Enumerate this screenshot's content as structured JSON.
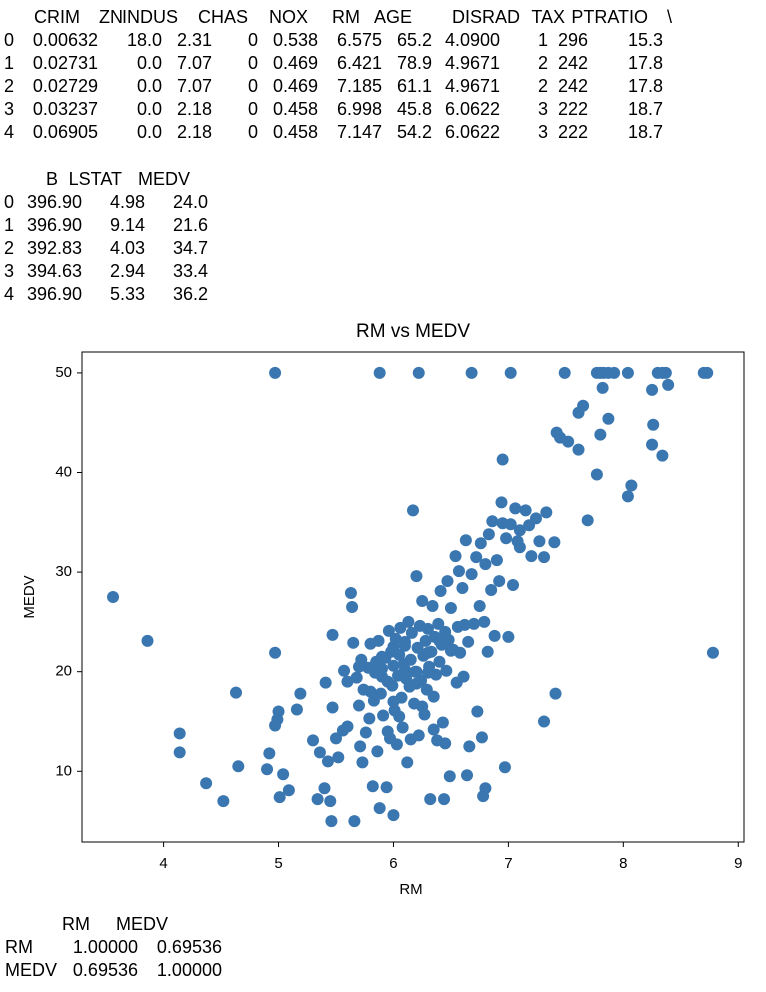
{
  "table_1": {
    "columns": [
      "CRIM",
      "ZN",
      "INDUS",
      "CHAS",
      "NOX",
      "RM",
      "AGE",
      "DIS",
      "RAD",
      "TAX",
      "PTRATIO",
      "\\"
    ],
    "index": [
      "0",
      "1",
      "2",
      "3",
      "4"
    ],
    "rows": [
      [
        "0.00632",
        "18.0",
        "2.31",
        "0",
        "0.538",
        "6.575",
        "65.2",
        "4.0900",
        "1",
        "296",
        "15.3"
      ],
      [
        "0.02731",
        "0.0",
        "7.07",
        "0",
        "0.469",
        "6.421",
        "78.9",
        "4.9671",
        "2",
        "242",
        "17.8"
      ],
      [
        "0.02729",
        "0.0",
        "7.07",
        "0",
        "0.469",
        "7.185",
        "61.1",
        "4.9671",
        "2",
        "242",
        "17.8"
      ],
      [
        "0.03237",
        "0.0",
        "2.18",
        "0",
        "0.458",
        "6.998",
        "45.8",
        "6.0622",
        "3",
        "222",
        "18.7"
      ],
      [
        "0.06905",
        "0.0",
        "2.18",
        "0",
        "0.458",
        "7.147",
        "54.2",
        "6.0622",
        "3",
        "222",
        "18.7"
      ]
    ]
  },
  "table_2": {
    "columns": [
      "B",
      "LSTAT",
      "MEDV"
    ],
    "index": [
      "0",
      "1",
      "2",
      "3",
      "4"
    ],
    "rows": [
      [
        "396.90",
        "4.98",
        "24.0"
      ],
      [
        "396.90",
        "9.14",
        "21.6"
      ],
      [
        "392.83",
        "4.03",
        "34.7"
      ],
      [
        "394.63",
        "2.94",
        "33.4"
      ],
      [
        "396.90",
        "5.33",
        "36.2"
      ]
    ]
  },
  "chart_data": {
    "type": "scatter",
    "title": "RM vs MEDV",
    "xlabel": "RM",
    "ylabel": "MEDV",
    "color": "#3a76b0",
    "xlim": [
      3.29,
      9.05
    ],
    "ylim": [
      2.9,
      52.1
    ],
    "xticks": [
      4,
      5,
      6,
      7,
      8,
      9
    ],
    "yticks": [
      10,
      20,
      30,
      40,
      50
    ],
    "x": [
      3.56,
      3.86,
      4.14,
      4.14,
      4.37,
      4.52,
      4.63,
      4.65,
      4.97,
      5.88,
      6.22,
      6.68,
      7.02,
      7.49,
      7.77,
      7.8,
      7.83,
      7.87,
      7.92,
      8.04,
      8.3,
      8.34,
      8.37,
      8.7,
      8.73,
      7.82,
      8.39,
      8.25,
      8.26,
      8.25,
      8.34,
      8.07,
      8.04,
      7.87,
      7.8,
      7.77,
      7.69,
      7.61,
      7.65,
      7.42,
      7.45,
      7.52,
      7.61,
      8.78,
      7.41,
      7.31,
      6.97,
      6.78,
      6.8,
      4.97,
      4.9,
      4.92,
      5.0,
      4.97,
      4.99,
      5.01,
      5.04,
      5.09,
      5.19,
      5.16,
      5.3,
      5.34,
      5.36,
      5.4,
      5.41,
      5.43,
      5.45,
      5.46,
      5.47,
      5.5,
      5.52,
      5.56,
      5.57,
      5.6,
      5.47,
      5.63,
      5.64,
      5.65,
      5.66,
      5.68,
      5.7,
      5.71,
      5.72,
      5.73,
      5.74,
      5.76,
      5.78,
      5.79,
      5.8,
      5.82,
      5.83,
      5.84,
      5.85,
      5.86,
      5.87,
      5.88,
      5.89,
      5.9,
      5.91,
      5.93,
      5.94,
      5.95,
      5.96,
      5.97,
      5.98,
      5.99,
      6.0,
      6.0,
      6.01,
      6.02,
      6.03,
      6.04,
      6.05,
      6.06,
      6.07,
      6.08,
      6.09,
      6.1,
      6.11,
      6.12,
      6.13,
      6.14,
      6.15,
      6.16,
      6.17,
      6.18,
      6.19,
      6.2,
      6.21,
      6.22,
      6.23,
      6.24,
      6.25,
      6.26,
      6.27,
      6.28,
      6.29,
      6.3,
      6.31,
      6.32,
      6.33,
      6.34,
      6.35,
      6.36,
      6.37,
      6.38,
      6.39,
      6.4,
      6.41,
      6.42,
      6.43,
      6.44,
      6.45,
      6.46,
      6.47,
      6.48,
      6.49,
      6.5,
      6.52,
      6.54,
      6.55,
      6.56,
      6.57,
      6.58,
      6.6,
      6.61,
      6.62,
      6.63,
      6.64,
      6.65,
      6.66,
      6.68,
      6.7,
      6.72,
      6.73,
      6.75,
      6.76,
      6.77,
      6.79,
      6.8,
      6.82,
      6.83,
      6.85,
      6.86,
      6.88,
      6.9,
      6.92,
      6.94,
      6.95,
      6.98,
      7.0,
      7.02,
      7.04,
      7.06,
      7.08,
      7.1,
      7.15,
      7.18,
      7.2,
      7.24,
      7.27,
      7.31,
      7.33,
      7.4,
      6.95,
      7.1,
      5.95,
      6.05,
      6.15,
      6.25,
      6.35,
      6.45,
      5.9,
      6.0,
      6.1,
      6.2,
      6.3,
      5.6,
      5.7,
      5.8,
      5.9,
      6.0,
      6.1,
      6.2,
      6.3,
      6.4,
      6.5
    ],
    "y": [
      27.5,
      23.1,
      13.8,
      11.9,
      8.8,
      7.0,
      17.9,
      10.5,
      50,
      50,
      50,
      50,
      50,
      50,
      50,
      50,
      50,
      50,
      50,
      50,
      50,
      50,
      50,
      50,
      50,
      48.5,
      48.8,
      48.3,
      44.8,
      42.8,
      41.7,
      38.7,
      37.6,
      45.4,
      43.8,
      39.8,
      35.2,
      46.0,
      46.7,
      44.0,
      43.5,
      43.1,
      42.3,
      21.9,
      17.8,
      15.0,
      10.4,
      7.5,
      8.3,
      21.9,
      10.2,
      11.8,
      16.0,
      14.6,
      15.2,
      7.4,
      9.7,
      8.1,
      17.8,
      16.2,
      13.1,
      7.2,
      11.9,
      8.3,
      18.9,
      11.0,
      7.0,
      5.0,
      16.4,
      13.3,
      11.4,
      14.1,
      20.1,
      14.5,
      23.7,
      27.9,
      26.5,
      22.9,
      5.0,
      19.4,
      16.6,
      12.5,
      21.2,
      10.9,
      18.2,
      13.9,
      20.4,
      15.3,
      22.8,
      8.5,
      17.1,
      19.9,
      21.0,
      12.0,
      23.1,
      6.3,
      17.8,
      20.3,
      15.6,
      21.4,
      8.4,
      19.0,
      24.1,
      13.3,
      22.0,
      18.6,
      5.6,
      20.6,
      16.1,
      23.3,
      12.7,
      19.6,
      21.7,
      24.4,
      17.4,
      14.4,
      20.8,
      22.6,
      19.3,
      10.9,
      25.0,
      18.5,
      21.2,
      23.9,
      36.2,
      16.8,
      20.0,
      29.6,
      22.4,
      13.6,
      24.6,
      19.1,
      27.1,
      21.6,
      15.7,
      23.1,
      18.2,
      24.3,
      20.5,
      7.2,
      22.0,
      26.6,
      17.5,
      23.5,
      19.7,
      13.1,
      24.8,
      21.0,
      28.1,
      22.7,
      14.9,
      7.2,
      24.0,
      20.1,
      29.1,
      23.2,
      9.5,
      26.4,
      22.2,
      31.6,
      18.9,
      24.5,
      30.1,
      21.9,
      28.4,
      19.5,
      24.7,
      33.2,
      9.6,
      23.0,
      12.5,
      29.8,
      24.8,
      31.5,
      16.0,
      26.6,
      32.9,
      13.4,
      25.0,
      30.8,
      22.0,
      33.8,
      28.2,
      35.1,
      23.6,
      31.2,
      29.1,
      37.0,
      34.9,
      33.4,
      23.5,
      34.8,
      28.7,
      36.4,
      33.1,
      32.5,
      36.2,
      34.7,
      31.6,
      35.4,
      33.1,
      31.5,
      36.0,
      33.0,
      41.3,
      34.2,
      14.0,
      15.5,
      13.2,
      16.5,
      14.2,
      12.8,
      21.5,
      22.5,
      23.0,
      20.0,
      21.9,
      19.0,
      20.5,
      18.0,
      19.5,
      17.0,
      20.2,
      18.8,
      19.9,
      23.1,
      22.1
    ]
  },
  "table_3": {
    "columns": [
      "RM",
      "MEDV"
    ],
    "index": [
      "RM",
      "MEDV"
    ],
    "rows": [
      [
        "1.00000",
        "0.69536"
      ],
      [
        "0.69536",
        "1.00000"
      ]
    ]
  }
}
